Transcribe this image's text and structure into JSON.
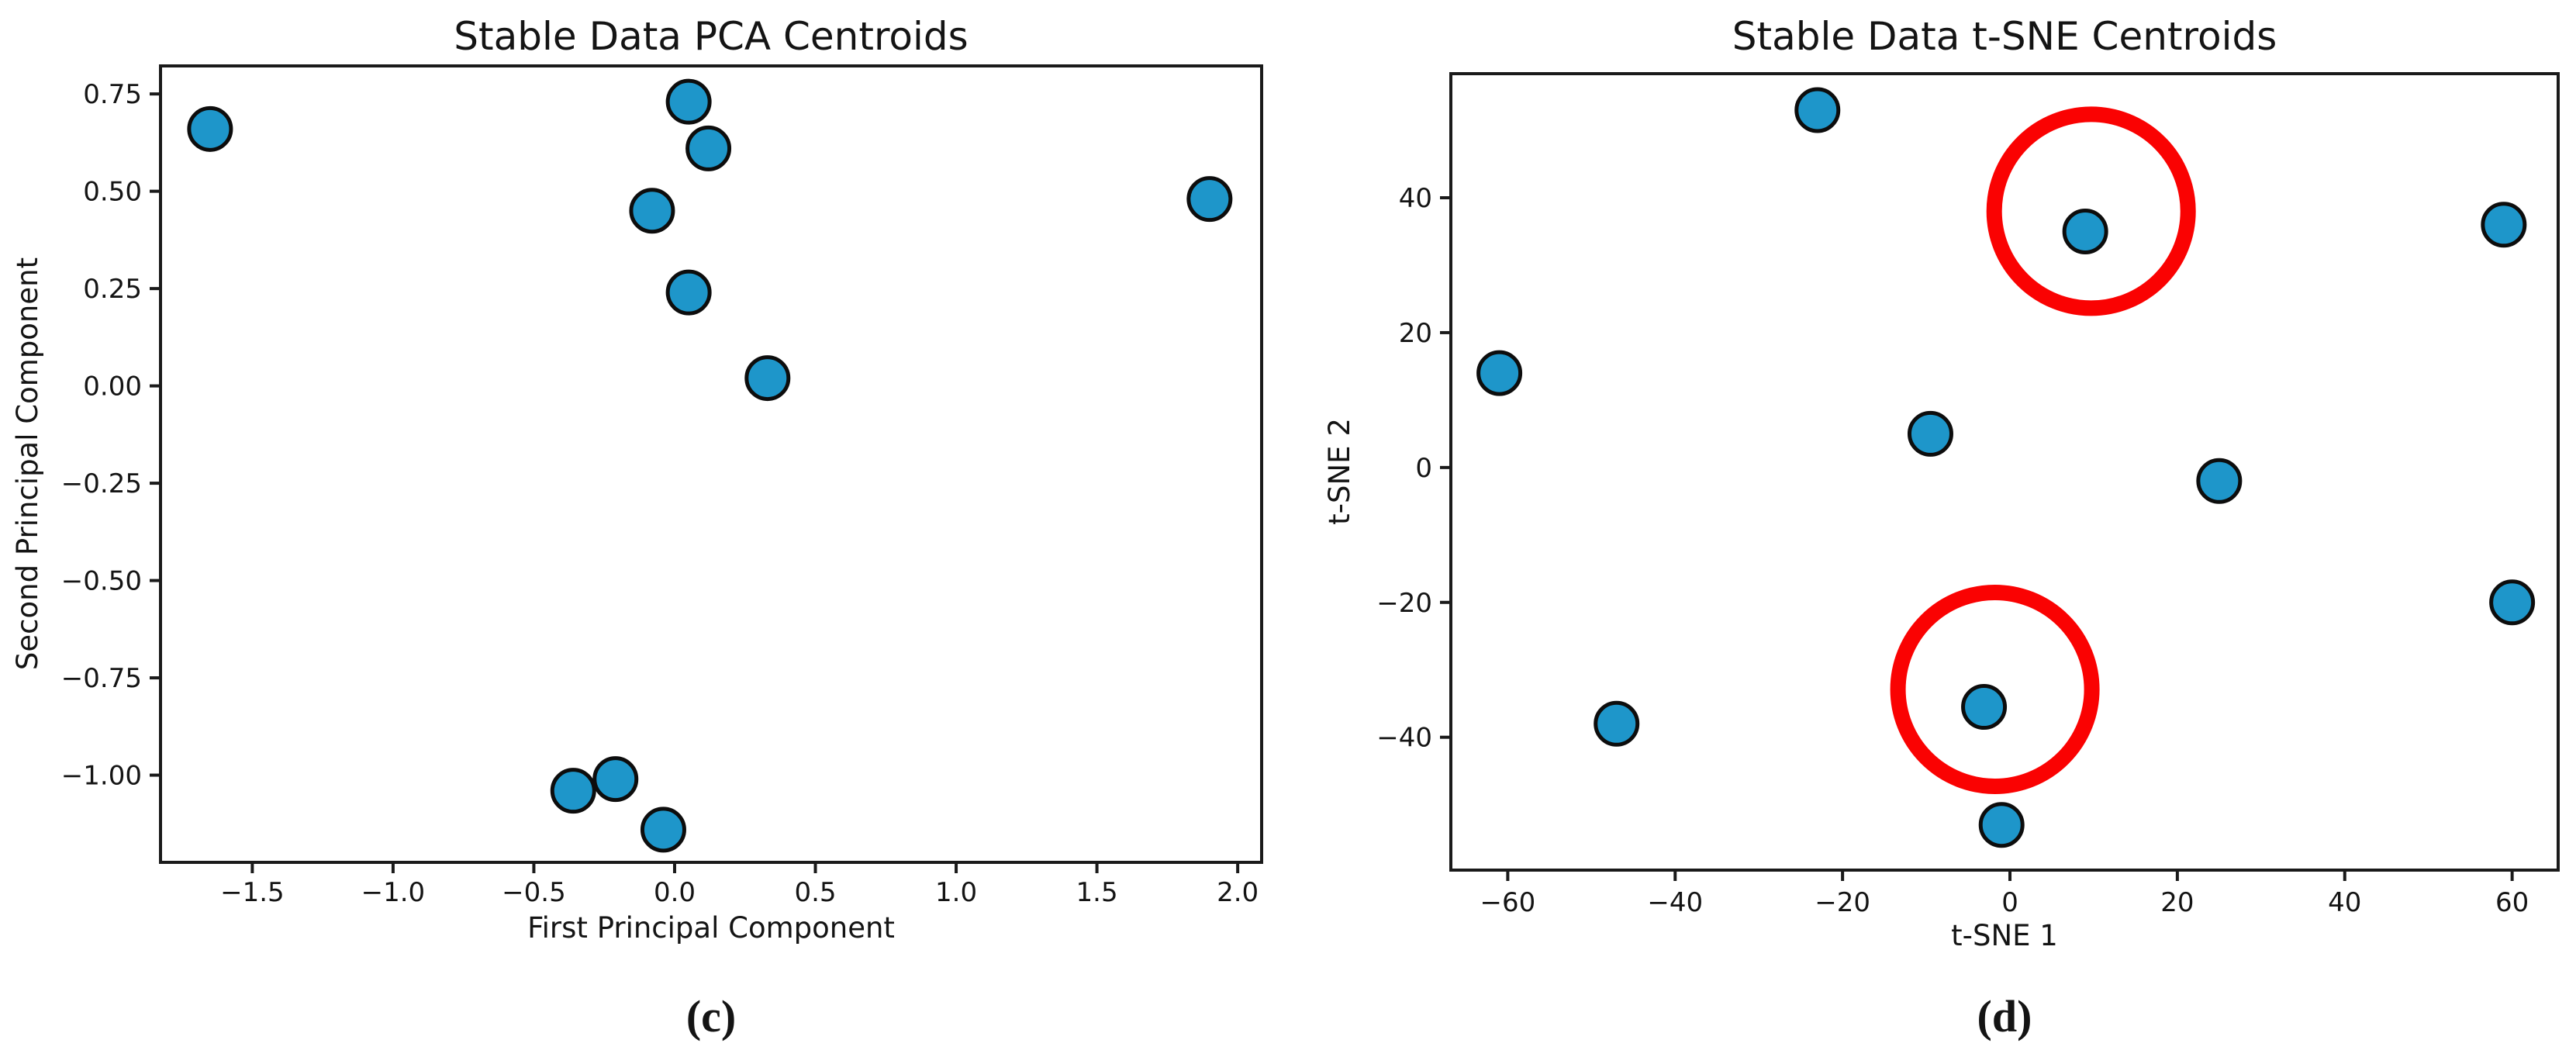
{
  "figure": {
    "background": "#ffffff",
    "marker_fill": "#1e96ca",
    "marker_edge": "#0d0d0d",
    "spine_color": "#1a1a1a",
    "annotation_color": "#fa0202"
  },
  "chart_data": [
    {
      "type": "scatter",
      "title": "Stable Data PCA Centroids",
      "xlabel": "First Principal Component",
      "ylabel": "Second Principal Component",
      "caption": "(c)",
      "grid": false,
      "legend": null,
      "xlim": [
        -1.826,
        2.085
      ],
      "ylim": [
        -1.224,
        0.822
      ],
      "xticks": {
        "values": [
          -1.5,
          -1.0,
          -0.5,
          0.0,
          0.5,
          1.0,
          1.5,
          2.0
        ],
        "labels": [
          "−1.5",
          "−1.0",
          "−0.5",
          "0.0",
          "0.5",
          "1.0",
          "1.5",
          "2.0"
        ]
      },
      "yticks": {
        "values": [
          0.75,
          0.5,
          0.25,
          0.0,
          -0.25,
          -0.5,
          -0.75,
          -1.0
        ],
        "labels": [
          "0.75",
          "0.50",
          "0.25",
          "0.00",
          "−0.25",
          "−0.50",
          "−0.75",
          "−1.00"
        ]
      },
      "points": [
        [
          -1.65,
          0.66
        ],
        [
          0.05,
          0.73
        ],
        [
          0.12,
          0.61
        ],
        [
          -0.08,
          0.45
        ],
        [
          0.05,
          0.24
        ],
        [
          0.33,
          0.02
        ],
        [
          1.9,
          0.48
        ],
        [
          -0.36,
          -1.04
        ],
        [
          -0.21,
          -1.01
        ],
        [
          -0.04,
          -1.14
        ]
      ],
      "annotations": []
    },
    {
      "type": "scatter",
      "title": "Stable Data t-SNE Centroids",
      "xlabel": "t-SNE 1",
      "ylabel": "t-SNE 2",
      "caption": "(d)",
      "grid": false,
      "legend": null,
      "xlim": [
        -66.8,
        65.5
      ],
      "ylim": [
        -59.7,
        58.4
      ],
      "xticks": {
        "values": [
          -60,
          -40,
          -20,
          0,
          20,
          40,
          60
        ],
        "labels": [
          "−60",
          "−40",
          "−20",
          "0",
          "20",
          "40",
          "60"
        ]
      },
      "yticks": {
        "values": [
          40,
          20,
          0,
          -20,
          -40
        ],
        "labels": [
          "40",
          "20",
          "0",
          "−20",
          "−40"
        ]
      },
      "points": [
        [
          -23,
          53
        ],
        [
          9,
          35
        ],
        [
          59,
          36
        ],
        [
          -61,
          14
        ],
        [
          -9.5,
          5
        ],
        [
          25,
          -2
        ],
        [
          60,
          -20
        ],
        [
          -47,
          -38
        ],
        [
          -3.1,
          -35.5
        ],
        [
          -1,
          -53
        ]
      ],
      "annotations": [
        {
          "shape": "circle",
          "x": 9.7,
          "y": 38.0,
          "radius_px": 125,
          "stroke_px": 20
        },
        {
          "shape": "circle",
          "x": -1.8,
          "y": -32.9,
          "radius_px": 125,
          "stroke_px": 20
        }
      ]
    }
  ]
}
